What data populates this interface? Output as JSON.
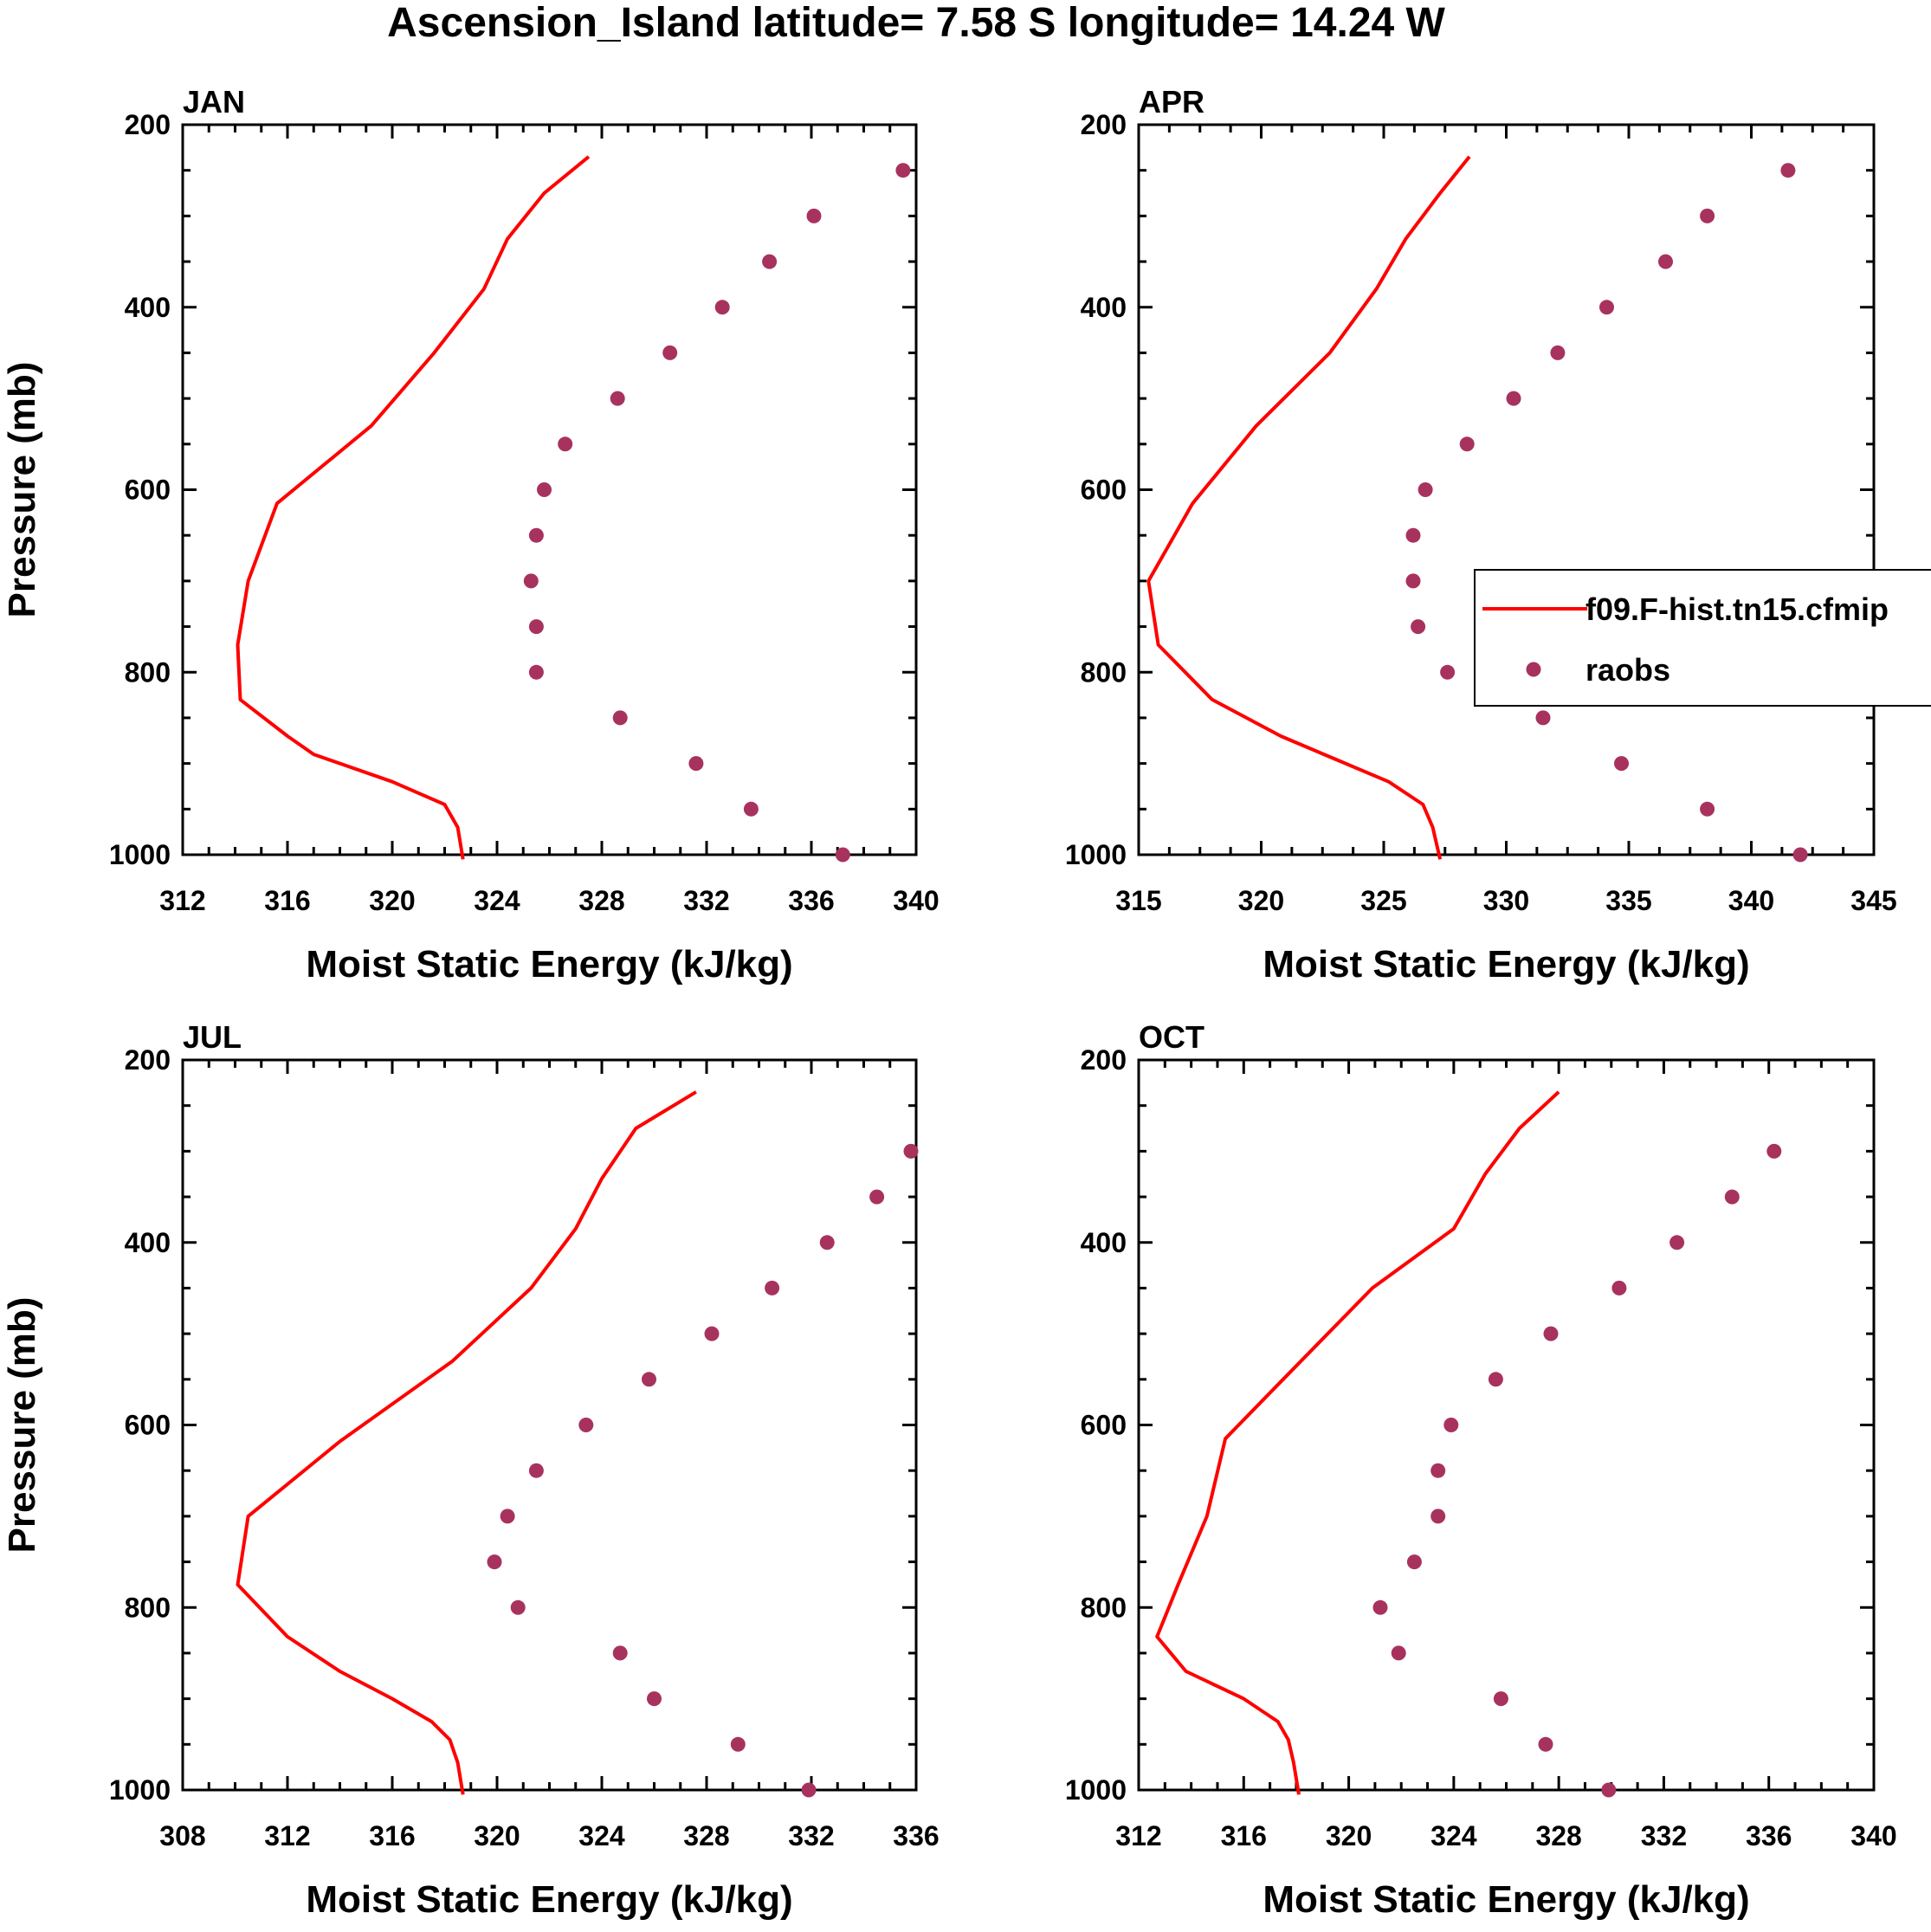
{
  "figure": {
    "title": "Ascension_Island  latitude= 7.58 S longitude= 14.24 W",
    "colors": {
      "model": "#ff0000",
      "obs": "#a8325e",
      "axis": "#000000"
    }
  },
  "legend": {
    "entries": [
      {
        "label": "f09.F-hist.tn15.cfmip",
        "kind": "line",
        "color": "#ff0000"
      },
      {
        "label": "raobs",
        "kind": "marker",
        "color": "#a8325e"
      }
    ]
  },
  "chart_data": [
    {
      "type": "line",
      "title": "JAN",
      "xlabel": "Moist Static Energy (kJ/kg)",
      "ylabel": "Pressure (mb)",
      "xlim": [
        312,
        340
      ],
      "ylim": [
        1000,
        200
      ],
      "xticks": [
        312,
        316,
        320,
        324,
        328,
        332,
        336,
        340
      ],
      "yticks": [
        200,
        400,
        600,
        800,
        1000
      ],
      "series": [
        {
          "name": "f09.F-hist.tn15.cfmip",
          "style": "line",
          "x": [
            322.7,
            322.5,
            322.0,
            320.0,
            317.0,
            316.0,
            314.2,
            314.1,
            314.5,
            315.6,
            319.2,
            321.6,
            323.5,
            324.4,
            325.8,
            327.5
          ],
          "y": [
            1005,
            970,
            945,
            920,
            890,
            870,
            830,
            770,
            700,
            615,
            530,
            450,
            380,
            325,
            275,
            235
          ]
        },
        {
          "name": "raobs",
          "style": "markers",
          "x": [
            337.2,
            333.7,
            331.6,
            328.7,
            325.5,
            325.5,
            325.3,
            325.5,
            325.8,
            326.6,
            328.6,
            330.6,
            332.6,
            334.4,
            336.1,
            339.5
          ],
          "y": [
            1000,
            950,
            900,
            850,
            800,
            750,
            700,
            650,
            600,
            550,
            500,
            450,
            400,
            350,
            300,
            250
          ]
        }
      ]
    },
    {
      "type": "line",
      "title": "APR",
      "xlabel": "Moist Static Energy (kJ/kg)",
      "ylabel": "",
      "xlim": [
        315,
        345
      ],
      "ylim": [
        1000,
        200
      ],
      "xticks": [
        315,
        320,
        325,
        330,
        335,
        340,
        345
      ],
      "yticks": [
        200,
        400,
        600,
        800,
        1000
      ],
      "series": [
        {
          "name": "f09.F-hist.tn15.cfmip",
          "style": "line",
          "x": [
            327.3,
            327.0,
            326.6,
            325.2,
            323.0,
            320.8,
            318.0,
            315.8,
            315.4,
            317.2,
            319.8,
            322.8,
            324.7,
            325.9,
            327.3,
            328.5
          ],
          "y": [
            1005,
            970,
            945,
            920,
            895,
            870,
            830,
            770,
            700,
            615,
            530,
            450,
            380,
            325,
            275,
            235
          ]
        },
        {
          "name": "raobs",
          "style": "markers",
          "x": [
            342.0,
            338.2,
            334.7,
            331.5,
            327.6,
            326.4,
            326.2,
            326.2,
            326.7,
            328.4,
            330.3,
            332.1,
            334.1,
            336.5,
            338.2,
            341.5
          ],
          "y": [
            1000,
            950,
            900,
            850,
            800,
            750,
            700,
            650,
            600,
            550,
            500,
            450,
            400,
            350,
            300,
            250
          ]
        }
      ]
    },
    {
      "type": "line",
      "title": "JUL",
      "xlabel": "Moist Static Energy (kJ/kg)",
      "ylabel": "Pressure (mb)",
      "xlim": [
        308,
        336
      ],
      "ylim": [
        1000,
        200
      ],
      "xticks": [
        308,
        312,
        316,
        320,
        324,
        328,
        332,
        336
      ],
      "yticks": [
        200,
        400,
        600,
        800,
        1000
      ],
      "series": [
        {
          "name": "f09.F-hist.tn15.cfmip",
          "style": "line",
          "x": [
            318.7,
            318.5,
            318.2,
            317.5,
            316.0,
            314.0,
            312.0,
            310.1,
            310.5,
            314.0,
            318.3,
            321.3,
            323.0,
            324.0,
            325.3,
            327.6
          ],
          "y": [
            1005,
            970,
            945,
            925,
            900,
            870,
            832,
            775,
            700,
            618,
            530,
            450,
            385,
            330,
            275,
            235
          ]
        },
        {
          "name": "raobs",
          "style": "markers",
          "x": [
            331.9,
            329.2,
            326.0,
            324.7,
            320.8,
            319.9,
            320.4,
            321.5,
            323.4,
            325.8,
            328.2,
            330.5,
            332.6,
            334.5,
            335.8
          ],
          "y": [
            1000,
            950,
            900,
            850,
            800,
            750,
            700,
            650,
            600,
            550,
            500,
            450,
            400,
            350,
            300
          ]
        }
      ]
    },
    {
      "type": "line",
      "title": "OCT",
      "xlabel": "Moist Static Energy (kJ/kg)",
      "ylabel": "",
      "xlim": [
        312,
        340
      ],
      "ylim": [
        1000,
        200
      ],
      "xticks": [
        312,
        316,
        320,
        324,
        328,
        332,
        336,
        340
      ],
      "yticks": [
        200,
        400,
        600,
        800,
        1000
      ],
      "series": [
        {
          "name": "f09.F-hist.tn15.cfmip",
          "style": "line",
          "x": [
            318.1,
            317.9,
            317.7,
            317.3,
            316.0,
            313.8,
            312.7,
            313.5,
            314.6,
            315.3,
            317.5,
            320.9,
            324.0,
            325.2,
            326.5,
            328.0
          ],
          "y": [
            1005,
            970,
            945,
            925,
            900,
            870,
            832,
            775,
            700,
            615,
            550,
            450,
            385,
            325,
            275,
            235
          ]
        },
        {
          "name": "raobs",
          "style": "markers",
          "x": [
            329.9,
            327.5,
            325.8,
            321.9,
            321.2,
            322.5,
            323.4,
            323.4,
            323.9,
            325.6,
            327.7,
            330.3,
            332.5,
            334.6,
            336.2
          ],
          "y": [
            1000,
            950,
            900,
            850,
            800,
            750,
            700,
            650,
            600,
            550,
            500,
            450,
            400,
            350,
            300
          ]
        }
      ]
    }
  ]
}
